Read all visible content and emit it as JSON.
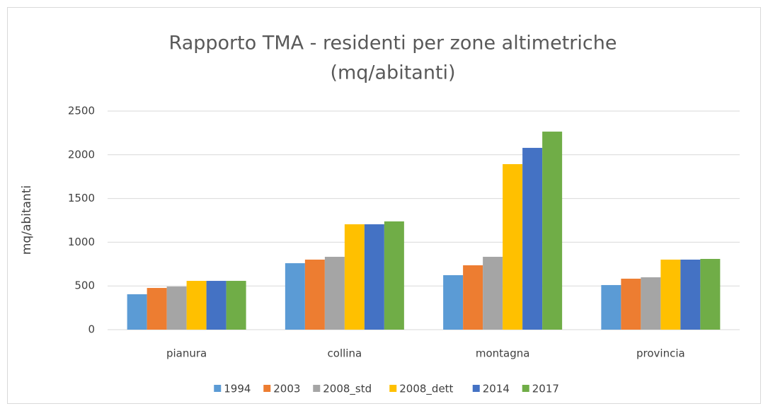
{
  "chart_data": {
    "type": "bar",
    "title": "Rapporto TMA - residenti per zone altimetriche",
    "subtitle": "(mq/abitanti)",
    "y_label": "mq/abitanti",
    "categories": [
      "pianura",
      "collina",
      "montagna",
      "provincia"
    ],
    "series": [
      {
        "name": "1994",
        "color": "#5b9bd5",
        "values": [
          405,
          760,
          623,
          510
        ]
      },
      {
        "name": "2003",
        "color": "#ed7d31",
        "values": [
          477,
          801,
          736,
          583
        ]
      },
      {
        "name": "2008_std",
        "color": "#a5a5a5",
        "values": [
          493,
          833,
          833,
          599
        ]
      },
      {
        "name": "2008_dett",
        "color": "#ffc000",
        "values": [
          558,
          1205,
          1893,
          801
        ]
      },
      {
        "name": "2014",
        "color": "#4472c4",
        "values": [
          558,
          1205,
          2079,
          801
        ]
      },
      {
        "name": "2017",
        "color": "#70ad47",
        "values": [
          558,
          1238,
          2265,
          809
        ]
      }
    ],
    "ylim": [
      0,
      2500
    ],
    "yticks": [
      0,
      500,
      1000,
      1500,
      2000,
      2500
    ],
    "grid": true,
    "legend": "bottom"
  }
}
